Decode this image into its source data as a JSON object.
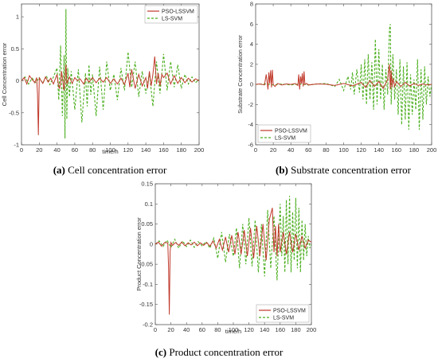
{
  "colors": {
    "pso_lssvm": "#c0392b",
    "ls_svm": "#4caf1f",
    "axis": "#555555",
    "grid": "#e6e6e6"
  },
  "chart_data": [
    {
      "id": "a",
      "type": "line",
      "caption": {
        "letter": "(a)",
        "text": "Cell concentration error"
      },
      "xlabel": "time/h",
      "ylabel": "Cell Concentration error",
      "xlim": [
        0,
        200
      ],
      "ylim": [
        -1,
        1.2
      ],
      "xticks": [
        0,
        20,
        40,
        60,
        80,
        100,
        120,
        140,
        160,
        180,
        200
      ],
      "yticks": [
        -1,
        -0.5,
        0,
        0.5,
        1
      ],
      "ytick_labels": [
        "-1",
        "-0.5",
        "0",
        "0.5",
        "1"
      ],
      "legend": "top-right",
      "series": [
        {
          "name": "PSO-LSSVM",
          "style": "solid",
          "x": [
            0,
            3,
            6,
            9,
            12,
            15,
            17,
            18,
            19,
            20,
            21,
            24,
            27,
            30,
            33,
            36,
            40,
            42,
            43,
            44,
            45,
            46,
            48,
            50,
            51,
            54,
            57,
            60,
            63,
            66,
            70,
            73,
            76,
            80,
            84,
            88,
            92,
            96,
            100,
            104,
            108,
            112,
            116,
            120,
            122,
            124,
            128,
            132,
            136,
            140,
            142,
            144,
            146,
            148,
            150,
            152,
            154,
            156,
            158,
            160,
            164,
            168,
            172,
            176,
            180,
            184,
            188,
            192,
            196,
            200
          ],
          "y": [
            0,
            0.05,
            -0.05,
            0.08,
            0.02,
            -0.03,
            0.05,
            -0.2,
            -0.85,
            0.05,
            0.02,
            -0.04,
            0.06,
            -0.02,
            0.04,
            -0.05,
            0.1,
            -0.1,
            -0.12,
            -0.02,
            0.15,
            0.05,
            -0.15,
            0.25,
            -0.05,
            0.06,
            -0.04,
            0.05,
            0,
            0.03,
            -0.05,
            0.04,
            -0.02,
            0.05,
            -0.03,
            0.04,
            -0.02,
            0.05,
            -0.04,
            0.03,
            -0.05,
            0.04,
            -0.06,
            0.12,
            -0.1,
            0.18,
            -0.12,
            0.1,
            -0.08,
            0.05,
            -0.12,
            0.15,
            -0.08,
            0.1,
            0.38,
            -0.05,
            0.12,
            -0.08,
            0.1,
            0.05,
            0.12,
            -0.05,
            0.08,
            -0.04,
            0.05,
            -0.03,
            0.04,
            -0.02,
            0.03,
            0
          ]
        },
        {
          "name": "LS-SVM",
          "style": "dashed",
          "x": [
            0,
            4,
            8,
            12,
            16,
            20,
            24,
            28,
            32,
            36,
            40,
            42,
            44,
            46,
            48,
            49,
            50,
            51,
            52,
            54,
            56,
            60,
            64,
            68,
            72,
            74,
            76,
            78,
            80,
            84,
            88,
            92,
            96,
            100,
            104,
            108,
            112,
            116,
            120,
            124,
            128,
            132,
            136,
            140,
            144,
            148,
            152,
            156,
            160,
            164,
            168,
            172,
            176,
            180,
            184,
            188,
            192,
            196,
            200
          ],
          "y": [
            0,
            0.06,
            -0.05,
            0.04,
            -0.03,
            0.05,
            -0.04,
            0.08,
            -0.06,
            0.06,
            0.2,
            -0.3,
            0.55,
            -0.55,
            0.4,
            -0.9,
            1.12,
            -0.6,
            0.2,
            -0.25,
            0.15,
            -0.45,
            0.18,
            -0.65,
            0.12,
            -0.4,
            0.25,
            -0.22,
            0.1,
            -0.55,
            0.22,
            -0.45,
            0.3,
            -0.15,
            0.1,
            -0.3,
            0.2,
            -0.15,
            0.45,
            -0.1,
            0.3,
            -0.25,
            0.15,
            -0.2,
            0.12,
            -0.4,
            0.3,
            -0.2,
            0.42,
            -0.15,
            0.3,
            -0.1,
            0.25,
            -0.12,
            0.1,
            -0.05,
            0.06,
            -0.03,
            0.02
          ]
        }
      ]
    },
    {
      "id": "b",
      "type": "line",
      "caption": {
        "letter": "(b)",
        "text": "Substrate concentration error"
      },
      "xlabel": "",
      "ylabel": "Substrate Concentration error",
      "xlim": [
        0,
        200
      ],
      "ylim": [
        -6,
        8
      ],
      "xticks": [
        0,
        20,
        40,
        60,
        80,
        100,
        120,
        140,
        160,
        180,
        200
      ],
      "yticks": [
        -6,
        -4,
        -2,
        0,
        2,
        4,
        6,
        8
      ],
      "ytick_labels": [
        "-6",
        "-4",
        "-2",
        "0",
        "2",
        "4",
        "6",
        "8"
      ],
      "legend": "bottom-left",
      "series": [
        {
          "name": "PSO-LSSVM",
          "style": "solid",
          "x": [
            0,
            5,
            10,
            12,
            14,
            15,
            16,
            17,
            18,
            19,
            20,
            22,
            25,
            30,
            35,
            40,
            45,
            48,
            49,
            50,
            51,
            52,
            53,
            54,
            55,
            56,
            58,
            60,
            70,
            80,
            90,
            100,
            110,
            120,
            125,
            130,
            135,
            140,
            145,
            150,
            152,
            153,
            154,
            155,
            156,
            158,
            160,
            165,
            170,
            175,
            180,
            185,
            190,
            195,
            200
          ],
          "y": [
            0,
            0.05,
            -0.05,
            1.0,
            -0.5,
            1.2,
            0.1,
            1.4,
            -0.3,
            1.45,
            0,
            -0.2,
            0.1,
            -0.05,
            0.05,
            0,
            0.1,
            -0.1,
            1.0,
            -0.5,
            0.8,
            0.1,
            1.1,
            -0.2,
            1.3,
            0,
            0.1,
            -0.05,
            0.05,
            0.02,
            -0.1,
            0.1,
            -0.15,
            0.2,
            -0.3,
            0.4,
            -0.2,
            0.3,
            -0.4,
            0.5,
            2.0,
            -0.5,
            1.4,
            -0.3,
            0.6,
            -0.2,
            0.3,
            -0.2,
            0.2,
            -0.15,
            0.1,
            -0.1,
            0.05,
            -0.05,
            0
          ]
        },
        {
          "name": "LS-SVM",
          "style": "dashed",
          "x": [
            0,
            10,
            20,
            30,
            40,
            50,
            60,
            70,
            80,
            90,
            95,
            100,
            105,
            108,
            110,
            112,
            115,
            118,
            120,
            122,
            124,
            126,
            128,
            130,
            132,
            134,
            136,
            138,
            140,
            142,
            144,
            146,
            148,
            150,
            152,
            153,
            154,
            156,
            158,
            160,
            162,
            164,
            166,
            168,
            170,
            172,
            174,
            176,
            178,
            180,
            182,
            184,
            186,
            188,
            190,
            192,
            194,
            196,
            198,
            200
          ],
          "y": [
            0,
            0.05,
            -0.05,
            0.05,
            -0.05,
            0.05,
            -0.05,
            0.05,
            0.1,
            -0.2,
            0.5,
            -0.6,
            0.8,
            -0.5,
            1.2,
            -1.0,
            1.5,
            -0.8,
            2.0,
            -1.5,
            2.5,
            -2.0,
            3.0,
            -1.5,
            2.2,
            -2.5,
            4.5,
            -2.0,
            3.5,
            -1.5,
            2.0,
            -2.5,
            1.5,
            -1.0,
            5.5,
            6.0,
            -2.0,
            3.0,
            -1.5,
            1.5,
            -3.0,
            2.5,
            -4.0,
            1.8,
            -3.5,
            2.2,
            -4.5,
            1.0,
            -3.0,
            0.5,
            -2.5,
            2.5,
            -4.5,
            1.5,
            -3.5,
            1.8,
            -2.0,
            0.8,
            -1.2,
            0
          ]
        }
      ]
    },
    {
      "id": "c",
      "type": "line",
      "caption": {
        "letter": "(c)",
        "text": "Product concentration error"
      },
      "xlabel": "time/h",
      "ylabel": "Product Concentration error",
      "xlim": [
        0,
        200
      ],
      "ylim": [
        -0.2,
        0.15
      ],
      "xticks": [
        0,
        20,
        40,
        60,
        80,
        100,
        120,
        140,
        160,
        180,
        200
      ],
      "yticks": [
        -0.2,
        -0.15,
        -0.1,
        -0.05,
        0,
        0.05,
        0.1,
        0.15
      ],
      "ytick_labels": [
        "-0.2",
        "-0.15",
        "-0.1",
        "-0.05",
        "0",
        "0.05",
        "0.1",
        "0.15"
      ],
      "legend": "bottom-right",
      "series": [
        {
          "name": "PSO-LSSVM",
          "style": "solid",
          "x": [
            0,
            4,
            8,
            12,
            16,
            17,
            18,
            19,
            20,
            22,
            26,
            30,
            34,
            38,
            42,
            46,
            50,
            54,
            58,
            62,
            66,
            70,
            74,
            78,
            82,
            86,
            90,
            94,
            98,
            102,
            106,
            110,
            114,
            118,
            122,
            126,
            130,
            134,
            138,
            142,
            146,
            150,
            152,
            154,
            156,
            158,
            160,
            164,
            168,
            172,
            176,
            180,
            184,
            188,
            192,
            196,
            200
          ],
          "y": [
            0,
            0.005,
            -0.005,
            0.004,
            0.003,
            -0.06,
            -0.175,
            -0.02,
            0.004,
            -0.003,
            0.004,
            -0.003,
            0.005,
            -0.004,
            0.003,
            -0.002,
            0.005,
            -0.004,
            0.003,
            -0.003,
            0.004,
            -0.005,
            0.008,
            -0.01,
            0.012,
            -0.015,
            0.018,
            -0.02,
            0.022,
            -0.025,
            0.03,
            -0.025,
            0.035,
            -0.03,
            0.04,
            -0.035,
            0.045,
            -0.03,
            0.05,
            -0.04,
            0.06,
            0.09,
            -0.02,
            0.045,
            -0.03,
            0.05,
            -0.02,
            0.03,
            -0.025,
            0.03,
            -0.02,
            0.025,
            -0.015,
            0.02,
            -0.01,
            0.01,
            0.005
          ]
        },
        {
          "name": "LS-SVM",
          "style": "dashed",
          "x": [
            0,
            5,
            10,
            15,
            20,
            25,
            30,
            35,
            40,
            45,
            50,
            55,
            60,
            65,
            70,
            75,
            80,
            85,
            90,
            95,
            100,
            104,
            108,
            112,
            116,
            120,
            124,
            128,
            132,
            136,
            140,
            144,
            148,
            152,
            156,
            160,
            162,
            164,
            166,
            168,
            170,
            172,
            174,
            176,
            178,
            180,
            182,
            184,
            186,
            188,
            190,
            192,
            194,
            196,
            198,
            200
          ],
          "y": [
            0,
            0.008,
            -0.006,
            0.01,
            -0.008,
            0.012,
            -0.01,
            0.008,
            -0.006,
            0.01,
            -0.008,
            0.006,
            -0.004,
            0.006,
            -0.01,
            0.015,
            -0.035,
            0.03,
            -0.045,
            0.025,
            -0.03,
            0.04,
            -0.06,
            0.05,
            -0.05,
            0.065,
            -0.055,
            0.06,
            -0.07,
            0.05,
            -0.08,
            0.085,
            -0.06,
            0.07,
            -0.09,
            0.1,
            -0.03,
            0.07,
            -0.07,
            0.11,
            -0.05,
            0.12,
            -0.07,
            0.08,
            -0.04,
            0.115,
            -0.06,
            0.09,
            -0.07,
            0.06,
            -0.04,
            0.05,
            -0.03,
            0.02,
            -0.01,
            0
          ]
        }
      ]
    }
  ]
}
